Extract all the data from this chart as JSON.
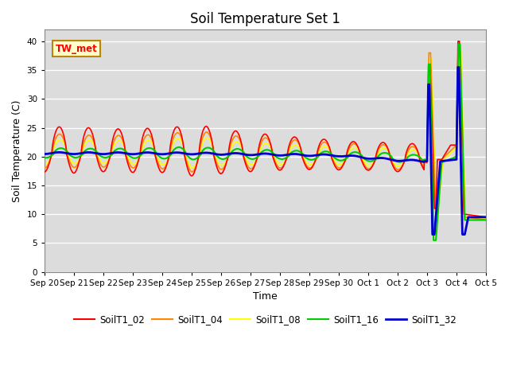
{
  "title": "Soil Temperature Set 1",
  "xlabel": "Time",
  "ylabel": "Soil Temperature (C)",
  "ylim": [
    0,
    42
  ],
  "yticks": [
    0,
    5,
    10,
    15,
    20,
    25,
    30,
    35,
    40
  ],
  "annotation_text": "TW_met",
  "bg_color": "#dcdcdc",
  "series_colors": {
    "SoilT1_02": "#ff0000",
    "SoilT1_04": "#ff8800",
    "SoilT1_08": "#ffff00",
    "SoilT1_16": "#00cc00",
    "SoilT1_32": "#0000cc"
  },
  "series_linewidths": {
    "SoilT1_02": 1.2,
    "SoilT1_04": 1.2,
    "SoilT1_08": 1.2,
    "SoilT1_16": 1.5,
    "SoilT1_32": 2.0
  },
  "xtick_labels": [
    "Sep 20",
    "Sep 21",
    "Sep 22",
    "Sep 23",
    "Sep 24",
    "Sep 25",
    "Sep 26",
    "Sep 27",
    "Sep 28",
    "Sep 29",
    "Sep 30",
    "Oct 1",
    "Oct 2",
    "Oct 3",
    "Oct 4",
    "Oct 5"
  ],
  "figsize": [
    6.4,
    4.8
  ],
  "dpi": 100
}
